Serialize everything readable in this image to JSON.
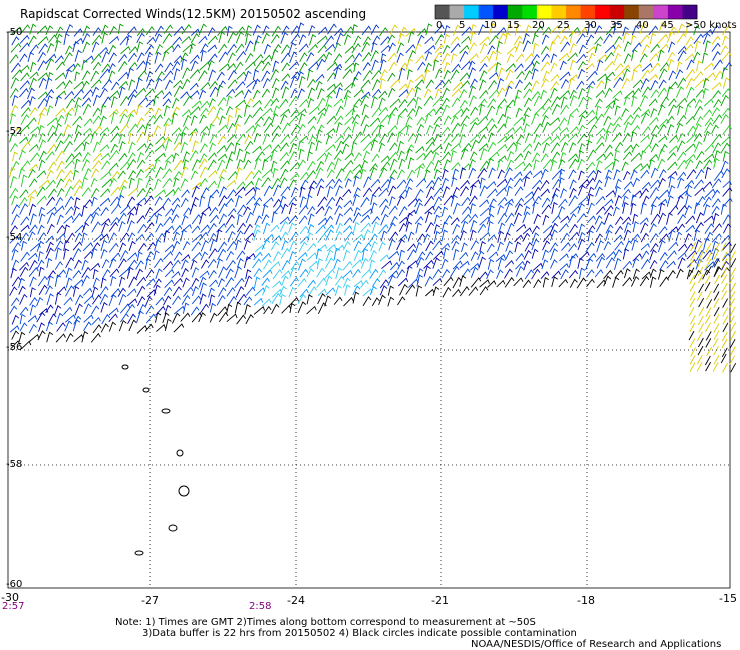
{
  "title": "Rapidscat Corrected Winds(12.5KM) 20150502 ascending",
  "legend": {
    "labels": [
      "0",
      "5",
      "10",
      "15",
      "20",
      "25",
      "30",
      "35",
      "40",
      "45",
      ">50 knots"
    ],
    "colors": [
      "#555555",
      "#aaaaaa",
      "#00ccff",
      "#0055ff",
      "#0000cc",
      "#00aa00",
      "#00dd00",
      "#ffff00",
      "#ffcc00",
      "#ff8800",
      "#ff4400",
      "#ff0000",
      "#cc0000",
      "#884400",
      "#aa7766",
      "#cc44cc",
      "#8800aa",
      "#440088"
    ]
  },
  "axes": {
    "x_labels": [
      "-30",
      "-27",
      "-24",
      "-21",
      "-18",
      "-15"
    ],
    "y_labels": [
      "-50",
      "-52",
      "-54",
      "-56",
      "-58",
      "-60"
    ]
  },
  "times": [
    {
      "label": "2:57"
    },
    {
      "label": "2:58"
    }
  ],
  "notes": {
    "line1": "Note: 1) Times are GMT 2)Times along bottom correspond to measurement at ~50S",
    "line2": "3)Data buffer is 22 hrs from 20150502 4) Black circles indicate possible contamination",
    "credit": "NOAA/NESDIS/Office of Research and Applications"
  }
}
